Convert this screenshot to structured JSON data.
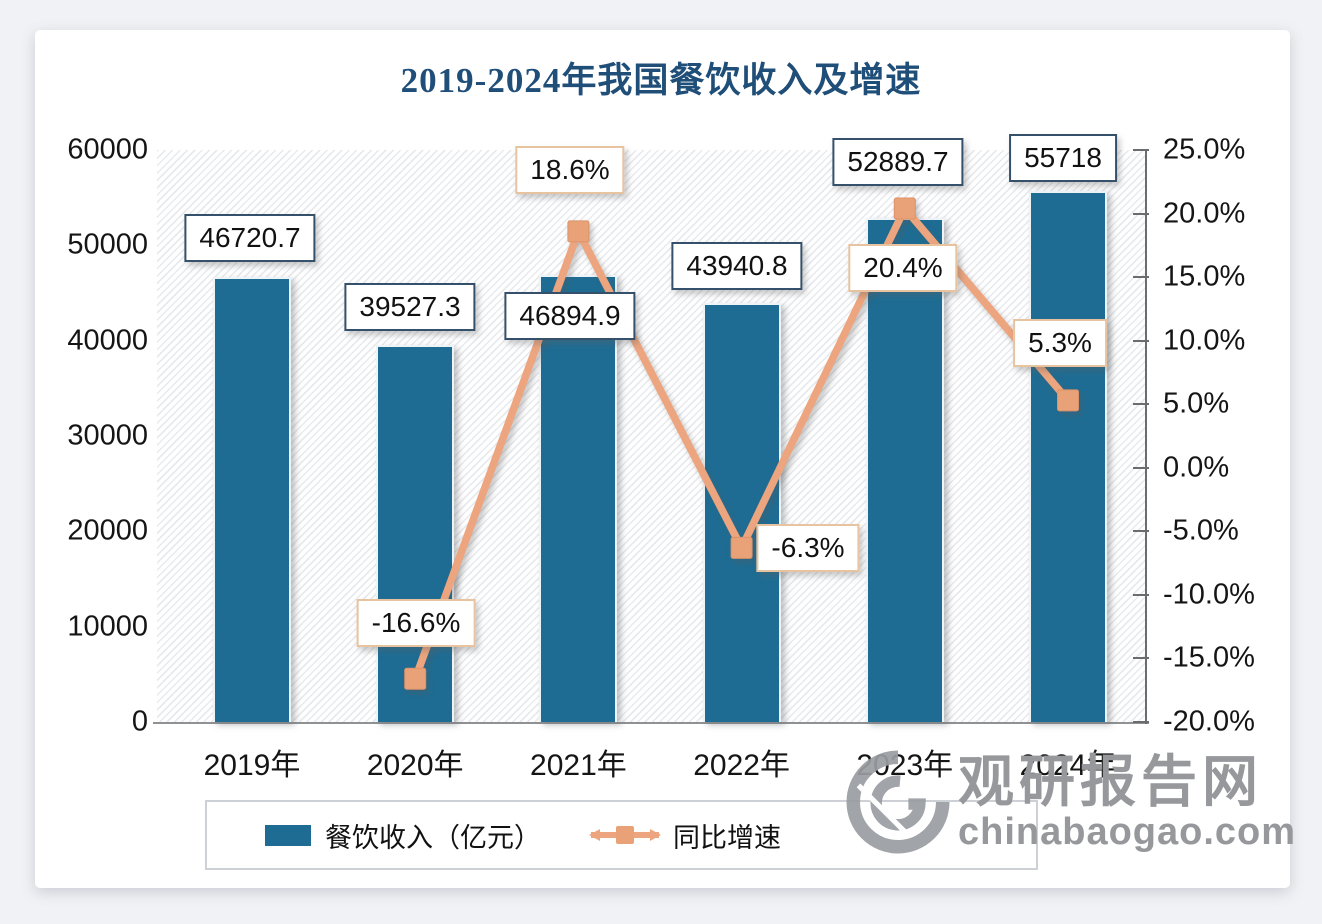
{
  "title": "2019-2024年我国餐饮收入及增速",
  "chart_data": {
    "type": "bar+line combo",
    "categories": [
      "2019年",
      "2020年",
      "2021年",
      "2022年",
      "2023年",
      "2024年"
    ],
    "series": [
      {
        "name": "餐饮收入（亿元）",
        "type": "bar",
        "axis": "left",
        "values": [
          46720.7,
          39527.3,
          46894.9,
          43940.8,
          52889.7,
          55718
        ],
        "labels": [
          "46720.7",
          "39527.3",
          "46894.9",
          "43940.8",
          "52889.7",
          "55718"
        ]
      },
      {
        "name": "同比增速",
        "type": "line",
        "axis": "right",
        "x_indices": [
          1,
          2,
          3,
          4,
          5
        ],
        "values": [
          -16.6,
          18.6,
          -6.3,
          20.4,
          5.3
        ],
        "labels": [
          "-16.6%",
          "18.6%",
          "-6.3%",
          "20.4%",
          "5.3%"
        ]
      }
    ],
    "left_axis": {
      "min": 0,
      "max": 60000,
      "ticks": [
        "0",
        "10000",
        "20000",
        "30000",
        "40000",
        "50000",
        "60000"
      ]
    },
    "right_axis": {
      "min": -20,
      "max": 25,
      "ticks": [
        "-20.0%",
        "-15.0%",
        "-10.0%",
        "-5.0%",
        "0.0%",
        "5.0%",
        "10.0%",
        "15.0%",
        "20.0%",
        "25.0%"
      ]
    },
    "grid": "hatched plot background, no gridlines",
    "legend_position": "bottom",
    "colors": {
      "bar": "#1E6C93",
      "line": "#ECA57E",
      "marker": "#E9A277",
      "title": "#1F4E79",
      "bar_label_border": "#35506B",
      "pct_label_border": "#E7C3A0"
    }
  },
  "legend": {
    "items": [
      {
        "label": "餐饮收入（亿元）",
        "swatch": "blue-bar-swatch"
      },
      {
        "label": "同比增速",
        "swatch": "orange-line-marker-swatch"
      }
    ]
  },
  "watermark": {
    "name_cn": "观研报告网",
    "domain": "chinabaogao.com",
    "logo": "swirl-globe-icon"
  }
}
